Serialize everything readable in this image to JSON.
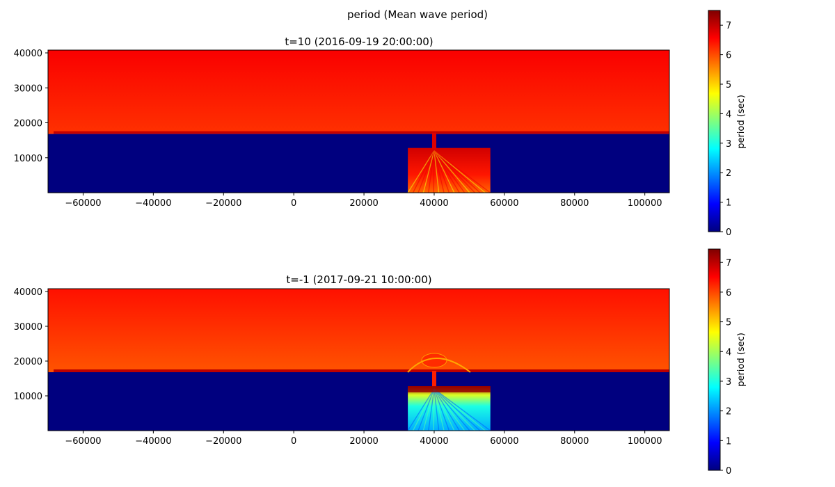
{
  "figure": {
    "suptitle": "period (Mean wave period)"
  },
  "colors": {
    "jet": [
      "#00007f",
      "#0000ff",
      "#007fff",
      "#00ffff",
      "#7fff7f",
      "#ffff00",
      "#ff7f00",
      "#ff0000",
      "#7f0000"
    ]
  },
  "chart_data": [
    {
      "type": "heatmap",
      "title": "t=10 (2016-09-19 20:00:00)",
      "xlabel": "",
      "ylabel": "",
      "xlim": [
        -70000,
        107000
      ],
      "ylim": [
        0,
        40800
      ],
      "xticks": [
        -60000,
        -40000,
        -20000,
        0,
        20000,
        40000,
        60000,
        80000,
        100000
      ],
      "xtick_labels": [
        "−60000",
        "−40000",
        "−20000",
        "0",
        "20000",
        "40000",
        "60000",
        "80000",
        "100000"
      ],
      "yticks": [
        10000,
        20000,
        30000,
        40000
      ],
      "ytick_labels": [
        "10000",
        "20000",
        "30000",
        "40000"
      ],
      "colorbar": {
        "label": "period (sec)",
        "range": [
          0,
          7.5
        ],
        "ticks": [
          0,
          1,
          2,
          3,
          4,
          5,
          6,
          7
        ],
        "tick_labels": [
          "0",
          "1",
          "2",
          "3",
          "4",
          "5",
          "6",
          "7"
        ]
      },
      "regions": {
        "land_value": 0,
        "land_top_y": 16800,
        "offshore_value_near": 6.2,
        "offshore_value_far": 6.6,
        "inlet_x": 40000,
        "bay": {
          "x": [
            32500,
            56000
          ],
          "y": [
            0,
            12800
          ],
          "value_typical": 6.4,
          "value_min": 4.6
        }
      }
    },
    {
      "type": "heatmap",
      "title": "t=-1 (2017-09-21 10:00:00)",
      "xlabel": "",
      "ylabel": "",
      "xlim": [
        -70000,
        107000
      ],
      "ylim": [
        0,
        40800
      ],
      "xticks": [
        -60000,
        -40000,
        -20000,
        0,
        20000,
        40000,
        60000,
        80000,
        100000
      ],
      "xtick_labels": [
        "−60000",
        "−40000",
        "−20000",
        "0",
        "20000",
        "40000",
        "60000",
        "80000",
        "100000"
      ],
      "yticks": [
        10000,
        20000,
        30000,
        40000
      ],
      "ytick_labels": [
        "10000",
        "20000",
        "30000",
        "40000"
      ],
      "colorbar": {
        "label": "period (sec)",
        "range": [
          0,
          7.45
        ],
        "ticks": [
          0,
          1,
          2,
          3,
          4,
          5,
          6,
          7
        ],
        "tick_labels": [
          "0",
          "1",
          "2",
          "3",
          "4",
          "5",
          "6",
          "7"
        ]
      },
      "regions": {
        "land_value": 0,
        "land_top_y": 16800,
        "offshore_value_near": 5.9,
        "offshore_value_far": 6.4,
        "inlet_x": 40000,
        "bay": {
          "x": [
            32500,
            56000
          ],
          "y": [
            0,
            12800
          ],
          "value_typical": 2.2,
          "value_min": 1.5,
          "value_max": 7.3
        }
      }
    }
  ]
}
